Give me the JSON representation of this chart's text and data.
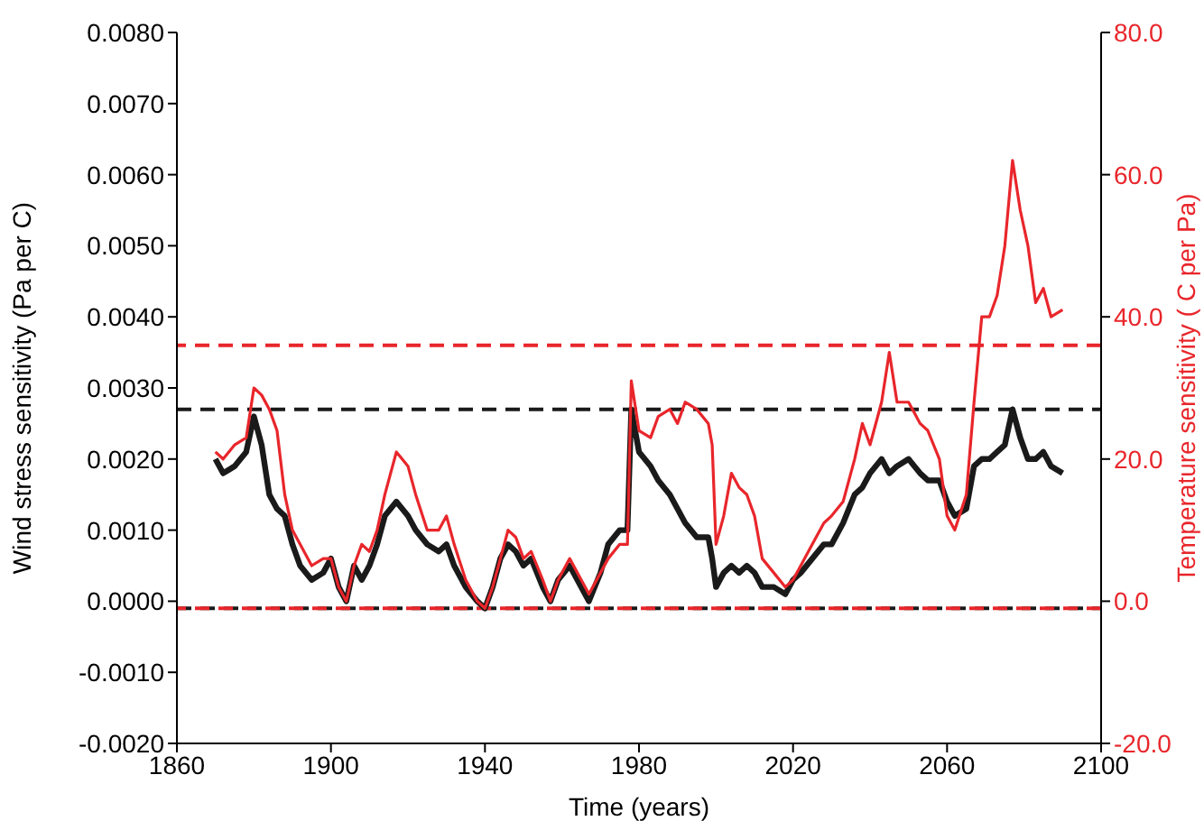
{
  "chart_data": {
    "type": "line",
    "xlabel": "Time (years)",
    "ylabel": "Wind stress sensitivity (Pa per  C)",
    "y2label": "Temperature sensitivity ( C per Pa)",
    "x": [
      1870,
      1872,
      1875,
      1878,
      1880,
      1882,
      1884,
      1886,
      1888,
      1890,
      1892,
      1895,
      1898,
      1900,
      1902,
      1904,
      1906,
      1908,
      1910,
      1912,
      1914,
      1917,
      1920,
      1922,
      1925,
      1928,
      1930,
      1932,
      1935,
      1938,
      1940,
      1942,
      1944,
      1946,
      1948,
      1950,
      1952,
      1955,
      1957,
      1959,
      1962,
      1965,
      1967,
      1970,
      1972,
      1975,
      1977,
      1978,
      1980,
      1983,
      1985,
      1988,
      1990,
      1992,
      1995,
      1998,
      1999,
      2000,
      2002,
      2004,
      2006,
      2008,
      2010,
      2012,
      2015,
      2018,
      2020,
      2022,
      2025,
      2028,
      2030,
      2033,
      2036,
      2038,
      2040,
      2043,
      2045,
      2047,
      2050,
      2053,
      2055,
      2058,
      2060,
      2062,
      2065,
      2067,
      2069,
      2071,
      2073,
      2075,
      2077,
      2079,
      2081,
      2083,
      2085,
      2087,
      2090
    ],
    "series": [
      {
        "color": "#1a1a1a",
        "values": [
          0.002,
          0.0018,
          0.0019,
          0.0021,
          0.0026,
          0.0022,
          0.0015,
          0.0013,
          0.0012,
          0.0008,
          0.0005,
          0.0003,
          0.0004,
          0.0006,
          0.0002,
          0.0,
          0.0005,
          0.0003,
          0.0005,
          0.0008,
          0.0012,
          0.0014,
          0.0012,
          0.001,
          0.0008,
          0.0007,
          0.0008,
          0.0005,
          0.0002,
          0.0,
          -0.0001,
          0.0002,
          0.0006,
          0.0008,
          0.0007,
          0.0005,
          0.0006,
          0.0002,
          0.0,
          0.0003,
          0.0005,
          0.0002,
          0.0,
          0.0004,
          0.0008,
          0.001,
          0.001,
          0.0027,
          0.0021,
          0.0019,
          0.0017,
          0.0015,
          0.0013,
          0.0011,
          0.0009,
          0.0009,
          0.0006,
          0.0002,
          0.0004,
          0.0005,
          0.0004,
          0.0005,
          0.0004,
          0.0002,
          0.0002,
          0.0001,
          0.0003,
          0.0004,
          0.0006,
          0.0008,
          0.0008,
          0.0011,
          0.0015,
          0.0016,
          0.0018,
          0.002,
          0.0018,
          0.0019,
          0.002,
          0.0018,
          0.0017,
          0.0017,
          0.0014,
          0.0012,
          0.0013,
          0.0019,
          0.002,
          0.002,
          0.0021,
          0.0022,
          0.0027,
          0.0023,
          0.002,
          0.002,
          0.0021,
          0.0019,
          0.0018
        ]
      },
      {
        "color": "#e8262b",
        "axis": "y2",
        "values": [
          21,
          20,
          22,
          23,
          30,
          29,
          27,
          24,
          15,
          10,
          8,
          5,
          6,
          6,
          2,
          0,
          5,
          8,
          7,
          10,
          15,
          21,
          19,
          15,
          10,
          10,
          12,
          8,
          3,
          0,
          -1,
          2,
          6,
          10,
          9,
          6,
          7,
          3,
          0,
          3,
          6,
          3,
          1,
          4,
          6,
          8,
          8,
          31,
          24,
          23,
          26,
          27,
          25,
          28,
          27,
          25,
          22,
          8,
          12,
          18,
          16,
          15,
          12,
          6,
          4,
          2,
          3,
          5,
          8,
          11,
          12,
          14,
          20,
          25,
          22,
          28,
          35,
          28,
          28,
          25,
          24,
          20,
          12,
          10,
          15,
          28,
          40,
          40,
          43,
          50,
          62,
          55,
          50,
          42,
          44,
          40,
          41
        ]
      }
    ],
    "xlim": [
      1860,
      2100
    ],
    "xticks": [
      1860,
      1900,
      1940,
      1980,
      2020,
      2060,
      2100
    ],
    "ylim": [
      -0.002,
      0.008
    ],
    "yticks": [
      {
        "value": -0.002,
        "label": "-0.0020"
      },
      {
        "value": -0.001,
        "label": "-0.0010"
      },
      {
        "value": 0,
        "label": "0.0000"
      },
      {
        "value": 0.001,
        "label": "0.0010"
      },
      {
        "value": 0.002,
        "label": "0.0020"
      },
      {
        "value": 0.003,
        "label": "0.0030"
      },
      {
        "value": 0.004,
        "label": "0.0040"
      },
      {
        "value": 0.005,
        "label": "0.0050"
      },
      {
        "value": 0.006,
        "label": "0.0060"
      },
      {
        "value": 0.007,
        "label": "0.0070"
      },
      {
        "value": 0.008,
        "label": "0.0080"
      }
    ],
    "y2lim": [
      -20,
      80
    ],
    "y2ticks": [
      {
        "value": -20,
        "label": "-20.0"
      },
      {
        "value": 0,
        "label": "0.0"
      },
      {
        "value": 20,
        "label": "20.0"
      },
      {
        "value": 40,
        "label": "40.0"
      },
      {
        "value": 60,
        "label": "60.0"
      },
      {
        "value": 80,
        "label": "80.0"
      }
    ],
    "ref_lines": [
      {
        "axis": "y",
        "value": 0.0027,
        "color": "#1a1a1a",
        "line_style": "dashed"
      },
      {
        "axis": "y",
        "value": -0.0001,
        "color": "#1a1a1a",
        "line_style": "dashed"
      },
      {
        "axis": "y2",
        "value": 36,
        "color": "#e8262b",
        "line_style": "dashed"
      },
      {
        "axis": "y2",
        "value": -1,
        "color": "#e8262b",
        "line_style": "dashed"
      }
    ],
    "grid": false,
    "legend": false,
    "marker": "none",
    "line_style": "solid"
  }
}
